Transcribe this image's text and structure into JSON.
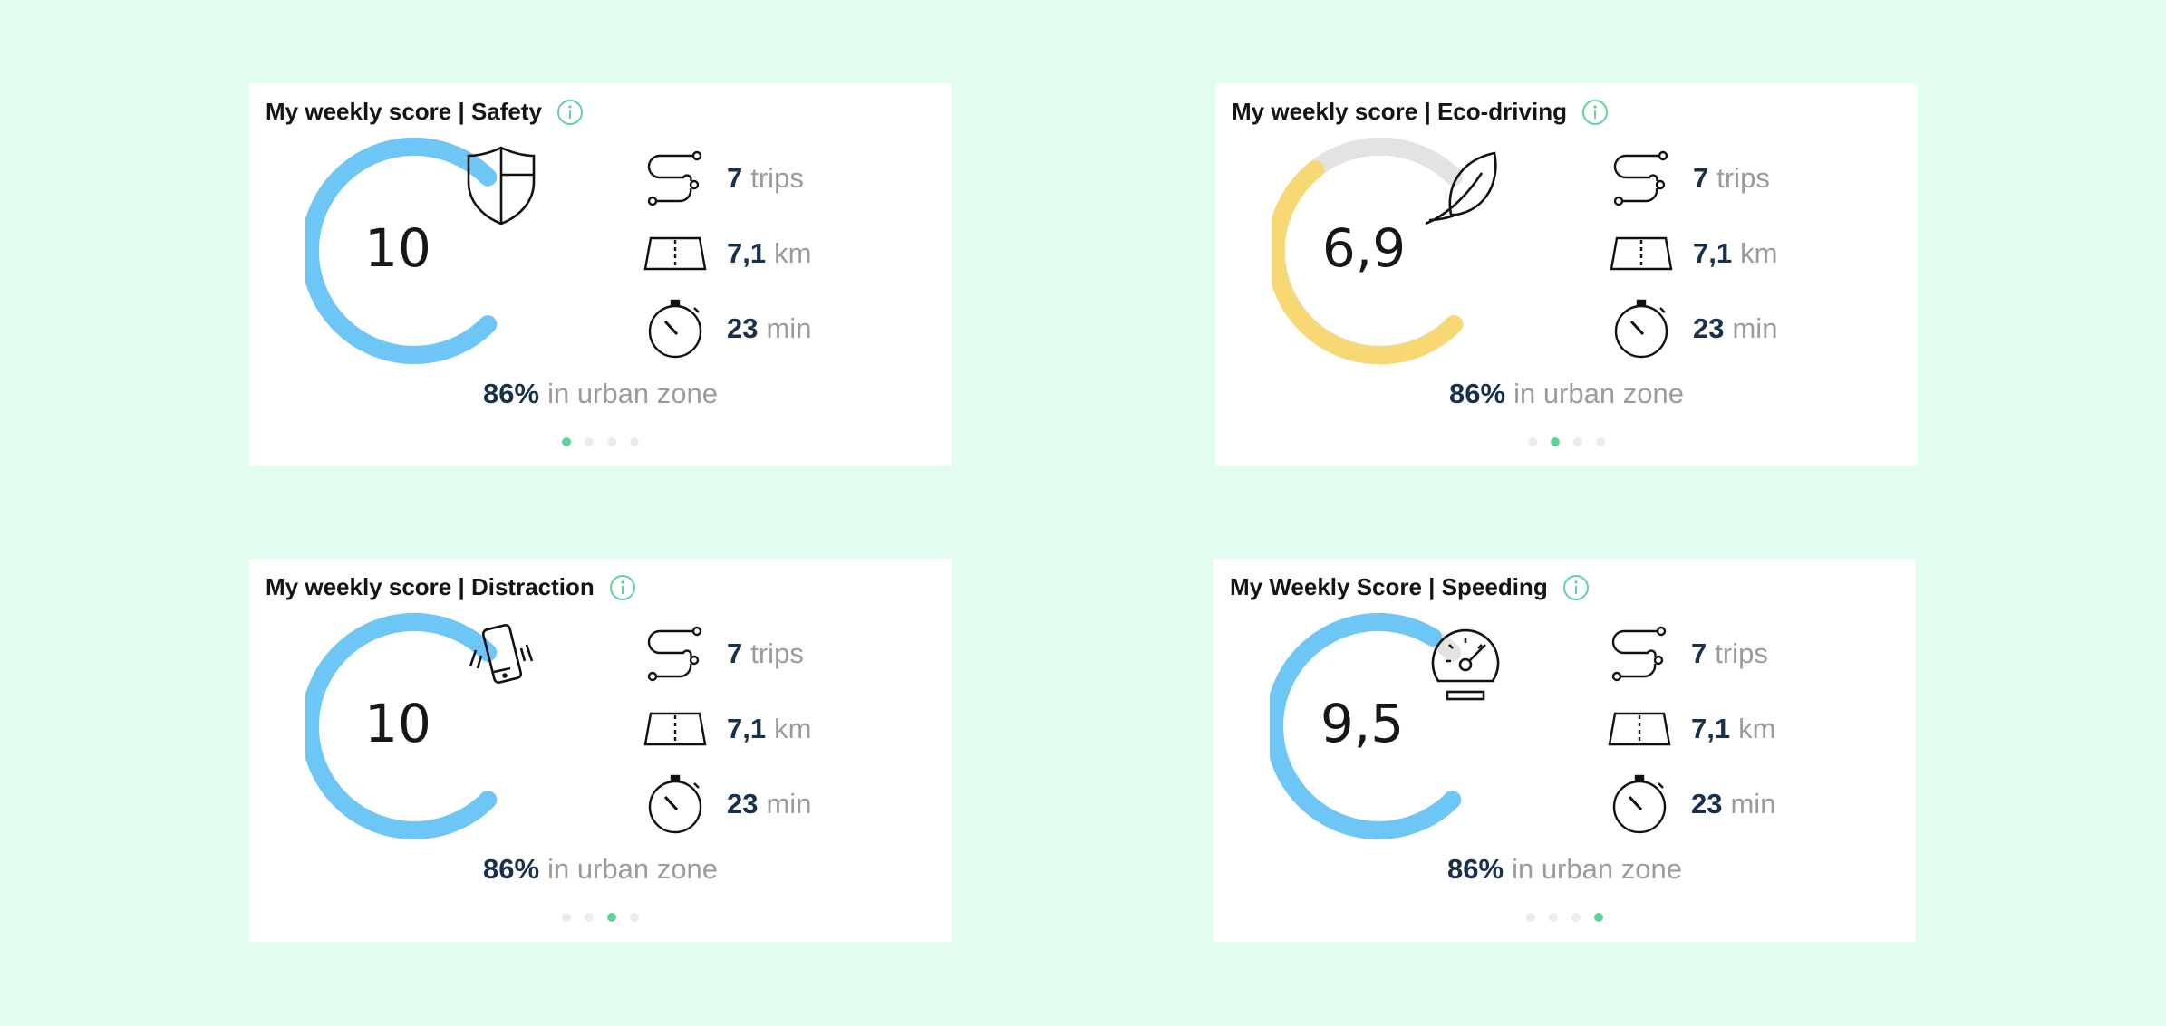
{
  "colors": {
    "background": "#e2fdf0",
    "value_text": "#17304c",
    "unit_text": "#9b9b9b",
    "gauge_track": "#e3e3e3",
    "info_icon": "#5fd39b",
    "active_dot": "#5fd39b"
  },
  "cards": [
    {
      "title": "My weekly score | Safety",
      "score": "10",
      "score_fraction": 1.0,
      "gauge_color": "#6ec6f7",
      "icon": "shield-icon",
      "stats": [
        {
          "icon": "route-icon",
          "value": "7",
          "unit": "trips"
        },
        {
          "icon": "road-icon",
          "value": "7,1",
          "unit": "km"
        },
        {
          "icon": "stopwatch-icon",
          "value": "23",
          "unit": "min"
        }
      ],
      "urban": {
        "value": "86%",
        "label": "in urban zone"
      },
      "pager": {
        "count": 4,
        "active_index": 0
      }
    },
    {
      "title": "My weekly score | Eco-driving",
      "score": "6,9",
      "score_fraction": 0.69,
      "gauge_color": "#f7d873",
      "icon": "leaf-icon",
      "stats": [
        {
          "icon": "route-icon",
          "value": "7",
          "unit": "trips"
        },
        {
          "icon": "road-icon",
          "value": "7,1",
          "unit": "km"
        },
        {
          "icon": "stopwatch-icon",
          "value": "23",
          "unit": "min"
        }
      ],
      "urban": {
        "value": "86%",
        "label": "in urban zone"
      },
      "pager": {
        "count": 4,
        "active_index": 1
      }
    },
    {
      "title": "My weekly score | Distraction",
      "score": "10",
      "score_fraction": 1.0,
      "gauge_color": "#6ec6f7",
      "icon": "vibrating-phone-icon",
      "stats": [
        {
          "icon": "route-icon",
          "value": "7",
          "unit": "trips"
        },
        {
          "icon": "road-icon",
          "value": "7,1",
          "unit": "km"
        },
        {
          "icon": "stopwatch-icon",
          "value": "23",
          "unit": "min"
        }
      ],
      "urban": {
        "value": "86%",
        "label": "in urban zone"
      },
      "pager": {
        "count": 4,
        "active_index": 2
      }
    },
    {
      "title": "My Weekly Score | Speeding",
      "score": "9,5",
      "score_fraction": 0.95,
      "gauge_color": "#6ec6f7",
      "icon": "speedometer-icon",
      "stats": [
        {
          "icon": "route-icon",
          "value": "7",
          "unit": "trips"
        },
        {
          "icon": "road-icon",
          "value": "7,1",
          "unit": "km"
        },
        {
          "icon": "stopwatch-icon",
          "value": "23",
          "unit": "min"
        }
      ],
      "urban": {
        "value": "86%",
        "label": "in urban zone"
      },
      "pager": {
        "count": 4,
        "active_index": 3
      }
    }
  ]
}
